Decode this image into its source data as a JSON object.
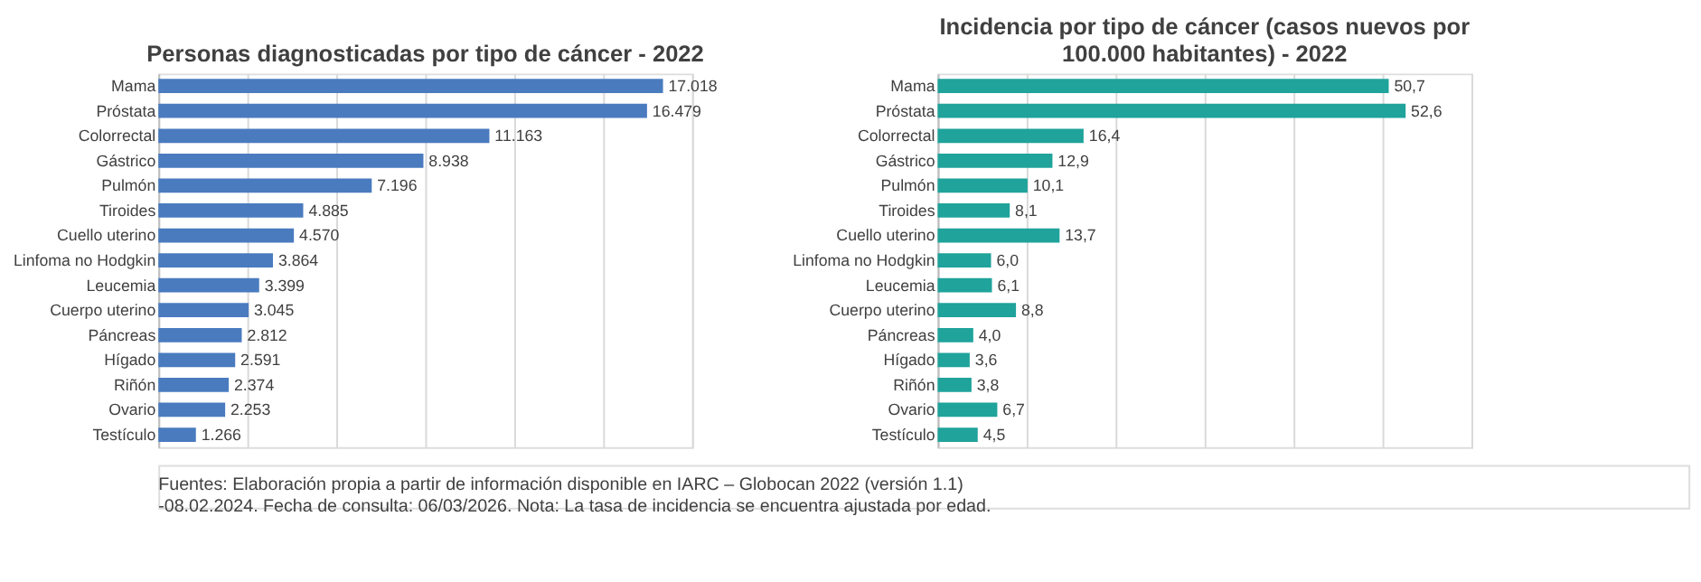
{
  "chart_data": [
    {
      "type": "bar",
      "orientation": "horizontal",
      "title": "Personas diagnosticadas por tipo de cáncer - 2022",
      "categories": [
        "Mama",
        "Próstata",
        "Colorrectal",
        "Gástrico",
        "Pulmón",
        "Tiroides",
        "Cuello uterino",
        "Linfoma no Hodgkin",
        "Leucemia",
        "Cuerpo uterino",
        "Páncreas",
        "Hígado",
        "Riñón",
        "Ovario",
        "Testículo"
      ],
      "values": [
        17018,
        16479,
        11163,
        8938,
        7196,
        4885,
        4570,
        3864,
        3399,
        3045,
        2812,
        2591,
        2374,
        2253,
        1266
      ],
      "value_labels": [
        "17.018",
        "16.479",
        "11.163",
        "8.938",
        "7.196",
        "4.885",
        "4.570",
        "3.864",
        "3.399",
        "3.045",
        "2.812",
        "2.591",
        "2.374",
        "2.253",
        "1.266"
      ],
      "color": "#4a7bbf",
      "xlim": [
        0,
        18000
      ],
      "xticks": [
        {
          "value": 0,
          "label": null
        },
        {
          "value": 3000,
          "label": null
        },
        {
          "value": 6000,
          "label": null
        },
        {
          "value": 9000,
          "label": null
        },
        {
          "value": 12000,
          "label": null
        },
        {
          "value": 15000,
          "label": null
        },
        {
          "value": 18000,
          "label": null
        }
      ],
      "grid": "x",
      "tick_labels": "y"
    },
    {
      "type": "bar",
      "orientation": "horizontal",
      "title": "Incidencia  por tipo de cáncer (casos nuevos por 100.000 habitantes)  - 2022",
      "categories": [
        "Mama",
        "Próstata",
        "Colorrectal",
        "Gástrico",
        "Pulmón",
        "Tiroides",
        "Cuello uterino",
        "Linfoma no Hodgkin",
        "Leucemia",
        "Cuerpo uterino",
        "Páncreas",
        "Hígado",
        "Riñón",
        "Ovario",
        "Testículo"
      ],
      "values": [
        50.7,
        52.6,
        16.4,
        12.9,
        10.1,
        8.1,
        13.7,
        6.0,
        6.1,
        8.8,
        4.0,
        3.6,
        3.8,
        6.7,
        4.5
      ],
      "value_labels": [
        "50,7",
        "52,6",
        "16,4",
        "12,9",
        "10,1",
        "8,1",
        "13,7",
        "6,0",
        "6,1",
        "8,8",
        "4,0",
        "3,6",
        "3,8",
        "6,7",
        "4,5"
      ],
      "color": "#1fa39b",
      "xlim": [
        0,
        60
      ],
      "xticks": [
        {
          "value": 0,
          "label": null
        },
        {
          "value": 10,
          "label": null
        },
        {
          "value": 20,
          "label": null
        },
        {
          "value": 30,
          "label": null
        },
        {
          "value": 40,
          "label": null
        },
        {
          "value": 50,
          "label": null
        },
        {
          "value": 60,
          "label": null
        }
      ],
      "grid": "x",
      "tick_labels": "y",
      "annotations": [
        "Fuentes: Elaboración propia a partir de información disponible en IARC – Globocan 2022 (versión 1.1) -08.02.2024. Fecha de consulta: 06/03/2026. Nota: La tasa de incidencia se encuentra ajustada por edad."
      ]
    }
  ]
}
